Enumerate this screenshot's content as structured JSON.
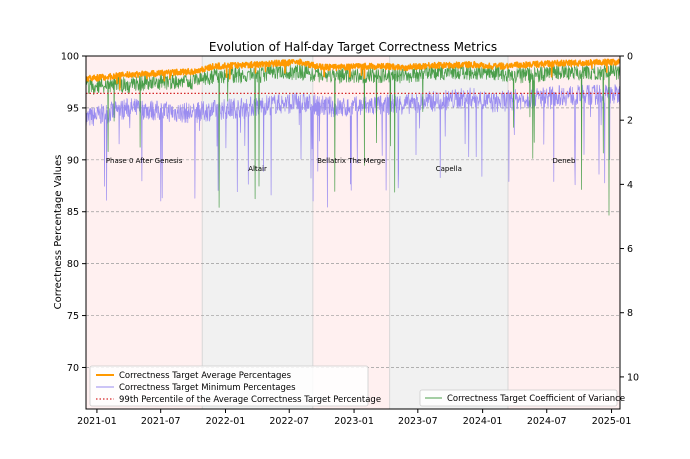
{
  "chart_data": {
    "type": "line",
    "title": "Evolution of Half-day Target Correctness Metrics",
    "ylabel": "Correctness Percentage Values",
    "y2label": "",
    "ylim": [
      66,
      100
    ],
    "y2lim": [
      11,
      0
    ],
    "xlim": [
      "2020-12-01",
      "2025-01-25"
    ],
    "x_ticks": [
      "2021-01",
      "2021-07",
      "2022-01",
      "2022-07",
      "2023-01",
      "2023-07",
      "2024-01",
      "2024-07",
      "2025-01"
    ],
    "y_ticks": [
      70,
      75,
      80,
      85,
      90,
      95,
      100
    ],
    "y2_ticks": [
      0,
      2,
      4,
      6,
      8,
      10
    ],
    "grid": "horizontal dashed",
    "percentile_99": 96.4,
    "phases": [
      {
        "label": "Phase 0 After Genesis",
        "start": "2020-12-01",
        "end": "2021-10-27",
        "shade": "pink"
      },
      {
        "label": "Altair",
        "start": "2021-10-27",
        "end": "2022-09-06",
        "shade": "gray"
      },
      {
        "label": "Bellatrix The Merge",
        "start": "2022-09-06",
        "end": "2023-04-12",
        "shade": "pink"
      },
      {
        "label": "Capella",
        "start": "2023-04-12",
        "end": "2024-03-13",
        "shade": "gray"
      },
      {
        "label": "Deneb",
        "start": "2024-03-13",
        "end": "2025-01-25",
        "shade": "pink"
      }
    ],
    "series": [
      {
        "name": "Correctness Target Average Percentages",
        "color": "#ff9900",
        "axis": "left",
        "x": [
          "2020-12-01",
          "2021-02-01",
          "2021-04-01",
          "2021-06-01",
          "2021-08-01",
          "2021-10-01",
          "2021-12-01",
          "2022-02-01",
          "2022-04-01",
          "2022-06-01",
          "2022-08-01",
          "2022-10-01",
          "2022-12-01",
          "2023-02-01",
          "2023-04-01",
          "2023-06-01",
          "2023-08-01",
          "2023-10-01",
          "2023-12-01",
          "2024-02-01",
          "2024-04-01",
          "2024-06-01",
          "2024-08-01",
          "2024-10-01",
          "2024-12-01",
          "2025-01-25"
        ],
        "values": [
          97.8,
          98.0,
          98.2,
          98.3,
          98.4,
          98.5,
          99.0,
          99.1,
          99.2,
          99.3,
          99.4,
          98.9,
          98.9,
          99.0,
          99.0,
          98.9,
          99.1,
          99.1,
          99.2,
          99.0,
          99.1,
          99.2,
          99.3,
          99.3,
          99.4,
          99.4
        ]
      },
      {
        "name": "Correctness Target Minimum Percentages",
        "color": "#9a8cf0",
        "axis": "left",
        "x": [
          "2020-12-01",
          "2021-02-01",
          "2021-04-01",
          "2021-06-01",
          "2021-08-01",
          "2021-10-01",
          "2021-12-01",
          "2022-02-01",
          "2022-04-01",
          "2022-06-01",
          "2022-08-01",
          "2022-10-01",
          "2022-12-01",
          "2023-02-01",
          "2023-04-01",
          "2023-06-01",
          "2023-08-01",
          "2023-10-01",
          "2023-12-01",
          "2024-02-01",
          "2024-04-01",
          "2024-06-01",
          "2024-08-01",
          "2024-10-01",
          "2024-12-01",
          "2025-01-25"
        ],
        "values": [
          94.0,
          94.5,
          95.0,
          94.8,
          94.6,
          94.5,
          94.8,
          95.0,
          95.2,
          95.4,
          95.5,
          95.2,
          95.0,
          95.2,
          95.3,
          95.4,
          95.6,
          95.8,
          96.0,
          95.5,
          95.8,
          96.0,
          96.2,
          96.2,
          96.3,
          96.3
        ]
      },
      {
        "name": "99th Percentile of the Average Correctness Target Percentage",
        "color": "#d62728",
        "axis": "left",
        "style": "dotted",
        "x": [
          "2020-12-01",
          "2025-01-25"
        ],
        "values": [
          96.4,
          96.4
        ]
      },
      {
        "name": "Correctness Target Coefficient of Variance",
        "color": "#4a9e4a",
        "axis": "right",
        "x": [
          "2020-12-01",
          "2021-02-01",
          "2021-04-01",
          "2021-06-01",
          "2021-08-01",
          "2021-10-01",
          "2021-12-01",
          "2022-02-01",
          "2022-04-01",
          "2022-06-01",
          "2022-08-01",
          "2022-10-01",
          "2022-12-01",
          "2023-02-01",
          "2023-04-01",
          "2023-06-01",
          "2023-08-01",
          "2023-10-01",
          "2023-12-01",
          "2024-02-01",
          "2024-04-01",
          "2024-06-01",
          "2024-08-01",
          "2024-10-01",
          "2024-12-01",
          "2025-01-25"
        ],
        "values": [
          1.0,
          0.9,
          0.9,
          0.8,
          0.8,
          0.8,
          0.6,
          0.6,
          0.6,
          0.5,
          0.5,
          0.6,
          0.6,
          0.6,
          0.6,
          0.6,
          0.5,
          0.5,
          0.5,
          0.5,
          0.6,
          0.6,
          0.5,
          0.5,
          0.5,
          0.5
        ]
      }
    ]
  }
}
